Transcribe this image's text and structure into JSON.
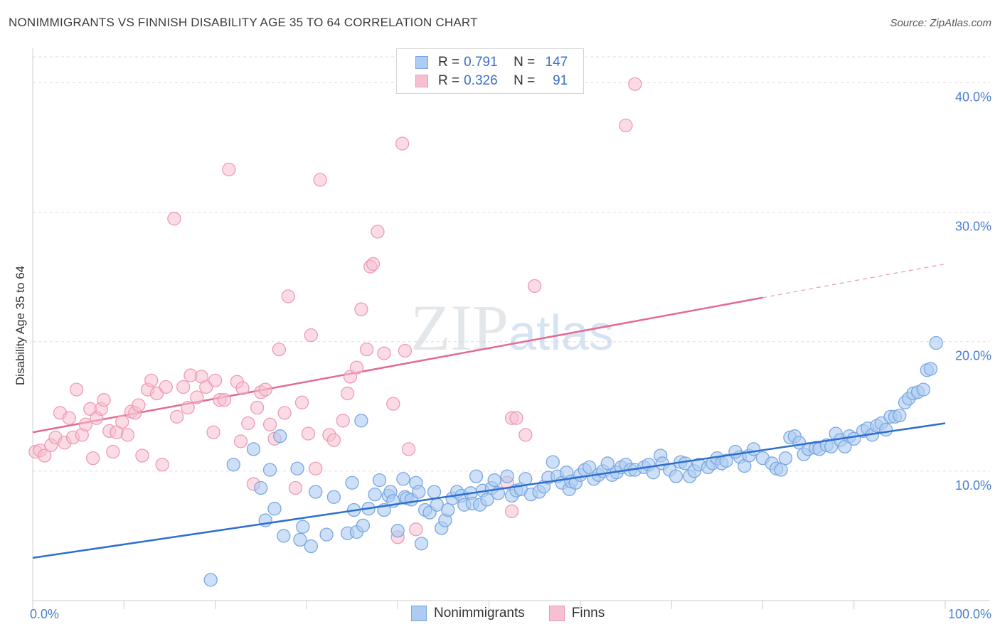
{
  "header": {
    "title": "NONIMMIGRANTS VS FINNISH DISABILITY AGE 35 TO 64 CORRELATION CHART",
    "source": "Source: ZipAtlas.com"
  },
  "legend": {
    "series1": {
      "r_label": "R =",
      "r_value": "0.791",
      "n_label": "N =",
      "n_value": "147"
    },
    "series2": {
      "r_label": "R =",
      "r_value": "0.326",
      "n_label": "N =",
      "n_value": "91"
    }
  },
  "bottom_legend": {
    "series1": "Nonimmigrants",
    "series2": "Finns"
  },
  "watermark": "ZIPatlas",
  "colors": {
    "blue_fill": "#aecbf2",
    "blue_stroke": "#7aa7e0",
    "blue_line": "#2d6fcf",
    "pink_fill": "#f7c0d0",
    "pink_stroke": "#ee9ab5",
    "pink_line": "#e26a93",
    "tick_text": "#4a7fd0"
  },
  "chart_data": {
    "type": "scatter",
    "title": "NONIMMIGRANTS VS FINNISH DISABILITY AGE 35 TO 64 CORRELATION CHART",
    "xlabel": "",
    "ylabel": "Disability Age 35 to 64",
    "xlim": [
      0,
      100
    ],
    "ylim": [
      0,
      42
    ],
    "x_tick_labels": [
      "0.0%",
      "100.0%"
    ],
    "y_ticks": [
      10,
      20,
      30,
      40
    ],
    "y_tick_labels": [
      "10.0%",
      "20.0%",
      "30.0%",
      "40.0%"
    ],
    "grid": "horizontal dashed",
    "legend_position": "top-center",
    "series": [
      {
        "name": "Nonimmigrants",
        "color": "#aecbf2",
        "trend": {
          "x": [
            0,
            100
          ],
          "y": [
            3.3,
            13.7
          ],
          "style": "solid"
        },
        "points": [
          [
            19.5,
            1.6
          ],
          [
            22,
            10.5
          ],
          [
            24.2,
            11.7
          ],
          [
            25,
            8.7
          ],
          [
            25.5,
            6.2
          ],
          [
            26,
            10.1
          ],
          [
            26.5,
            7.1
          ],
          [
            27.1,
            12.7
          ],
          [
            27.5,
            5
          ],
          [
            29,
            10.2
          ],
          [
            29.3,
            4.7
          ],
          [
            29.6,
            5.7
          ],
          [
            30.5,
            4.2
          ],
          [
            31,
            8.4
          ],
          [
            32.2,
            5.1
          ],
          [
            33,
            8
          ],
          [
            34.5,
            5.2
          ],
          [
            35,
            9.1
          ],
          [
            35.2,
            7
          ],
          [
            35.5,
            5.3
          ],
          [
            36,
            13.9
          ],
          [
            36.2,
            5.8
          ],
          [
            36.8,
            7.1
          ],
          [
            37.5,
            8.2
          ],
          [
            38,
            9.3
          ],
          [
            38.5,
            7
          ],
          [
            39,
            8.1
          ],
          [
            39.2,
            8.4
          ],
          [
            39.5,
            7.7
          ],
          [
            40,
            5.4
          ],
          [
            40.6,
            9.4
          ],
          [
            40.8,
            8
          ],
          [
            41,
            7.9
          ],
          [
            41.5,
            7.8
          ],
          [
            42,
            9.1
          ],
          [
            42.3,
            8.4
          ],
          [
            42.6,
            4.4
          ],
          [
            43,
            7
          ],
          [
            43.5,
            6.8
          ],
          [
            44,
            8.4
          ],
          [
            44.3,
            7.4
          ],
          [
            44.8,
            5.6
          ],
          [
            45.2,
            6.2
          ],
          [
            45.5,
            7
          ],
          [
            46,
            7.9
          ],
          [
            46.5,
            8.4
          ],
          [
            47,
            8.1
          ],
          [
            47.3,
            7.4
          ],
          [
            48,
            8.3
          ],
          [
            48.2,
            7.5
          ],
          [
            48.6,
            9.6
          ],
          [
            49,
            7.4
          ],
          [
            49.3,
            8.5
          ],
          [
            49.8,
            7.8
          ],
          [
            50.3,
            8.7
          ],
          [
            50.6,
            9.3
          ],
          [
            51,
            8.3
          ],
          [
            52,
            9.6
          ],
          [
            52.5,
            8.1
          ],
          [
            53,
            8.5
          ],
          [
            53.5,
            8.6
          ],
          [
            54,
            9.4
          ],
          [
            54.6,
            8.2
          ],
          [
            55.5,
            8.4
          ],
          [
            56,
            8.8
          ],
          [
            56.5,
            9.5
          ],
          [
            57,
            10.7
          ],
          [
            57.5,
            9.6
          ],
          [
            58,
            9.1
          ],
          [
            58.5,
            9.9
          ],
          [
            58.8,
            8.6
          ],
          [
            59,
            9.2
          ],
          [
            59.5,
            9.1
          ],
          [
            60,
            9.7
          ],
          [
            60.5,
            10.1
          ],
          [
            61,
            10.3
          ],
          [
            61.5,
            9.4
          ],
          [
            62,
            9.7
          ],
          [
            62.5,
            10
          ],
          [
            63,
            10.6
          ],
          [
            63.5,
            9.7
          ],
          [
            64,
            9.9
          ],
          [
            64.5,
            10.3
          ],
          [
            65,
            10.5
          ],
          [
            65.5,
            10.1
          ],
          [
            66,
            10.1
          ],
          [
            67,
            10.3
          ],
          [
            67.5,
            10.5
          ],
          [
            68,
            9.9
          ],
          [
            68.8,
            11.2
          ],
          [
            69,
            10.6
          ],
          [
            69.8,
            10.1
          ],
          [
            70.5,
            9.6
          ],
          [
            71,
            10.7
          ],
          [
            71.5,
            10.6
          ],
          [
            72,
            9.6
          ],
          [
            72.5,
            10
          ],
          [
            73,
            10.5
          ],
          [
            74,
            10.3
          ],
          [
            74.5,
            10.6
          ],
          [
            75,
            11
          ],
          [
            75.5,
            10.6
          ],
          [
            76,
            10.8
          ],
          [
            77.5,
            11.1
          ],
          [
            77,
            11.5
          ],
          [
            78,
            10.4
          ],
          [
            78.5,
            11.2
          ],
          [
            79,
            11.7
          ],
          [
            80,
            11
          ],
          [
            81,
            10.6
          ],
          [
            81.5,
            10.2
          ],
          [
            82,
            10.1
          ],
          [
            82.5,
            11
          ],
          [
            83,
            12.6
          ],
          [
            83.5,
            12.7
          ],
          [
            84,
            12.2
          ],
          [
            84.5,
            11.3
          ],
          [
            85,
            11.7
          ],
          [
            85.8,
            11.8
          ],
          [
            86.2,
            11.7
          ],
          [
            87,
            12
          ],
          [
            87.5,
            11.9
          ],
          [
            88,
            12.9
          ],
          [
            88.5,
            12.4
          ],
          [
            89,
            11.9
          ],
          [
            89.5,
            12.7
          ],
          [
            90,
            12.5
          ],
          [
            91,
            13.1
          ],
          [
            91.5,
            13.3
          ],
          [
            92,
            12.8
          ],
          [
            92.5,
            13.5
          ],
          [
            93,
            13.7
          ],
          [
            93.5,
            13.2
          ],
          [
            94,
            14.2
          ],
          [
            94.5,
            14.2
          ],
          [
            95,
            14.3
          ],
          [
            95.6,
            15.3
          ],
          [
            96,
            15.6
          ],
          [
            96.5,
            16
          ],
          [
            97,
            16.1
          ],
          [
            97.6,
            16.3
          ],
          [
            98,
            17.8
          ],
          [
            98.4,
            17.9
          ],
          [
            99,
            19.9
          ]
        ]
      },
      {
        "name": "Finns",
        "color": "#f7c0d0",
        "trend": {
          "x": [
            0,
            80
          ],
          "y": [
            13,
            23.4
          ],
          "style": "solid",
          "extension": {
            "x": [
              80,
              100
            ],
            "y": [
              23.4,
              26
            ]
          },
          "extension_style": "dashed"
        },
        "points": [
          [
            0.3,
            11.5
          ],
          [
            0.8,
            11.6
          ],
          [
            1.3,
            11.2
          ],
          [
            2,
            12
          ],
          [
            2.5,
            12.6
          ],
          [
            3,
            14.5
          ],
          [
            3.5,
            12.2
          ],
          [
            4,
            14.1
          ],
          [
            4.4,
            12.6
          ],
          [
            4.8,
            16.3
          ],
          [
            5.4,
            12.8
          ],
          [
            5.8,
            13.6
          ],
          [
            6.3,
            14.8
          ],
          [
            6.6,
            11
          ],
          [
            7,
            14.1
          ],
          [
            7.5,
            14.8
          ],
          [
            7.8,
            15.5
          ],
          [
            8.4,
            13.1
          ],
          [
            8.8,
            11.5
          ],
          [
            9.2,
            13
          ],
          [
            9.8,
            13.8
          ],
          [
            10.4,
            12.8
          ],
          [
            10.8,
            14.6
          ],
          [
            11.2,
            14.5
          ],
          [
            11.6,
            15.1
          ],
          [
            12,
            11.2
          ],
          [
            12.6,
            16.3
          ],
          [
            13,
            17
          ],
          [
            13.6,
            16
          ],
          [
            14.2,
            10.5
          ],
          [
            14.6,
            16.5
          ],
          [
            15.5,
            29.5
          ],
          [
            15.8,
            14.2
          ],
          [
            16.5,
            16.5
          ],
          [
            17,
            14.9
          ],
          [
            17.3,
            17.4
          ],
          [
            18,
            15.7
          ],
          [
            18.5,
            17.3
          ],
          [
            19,
            16.5
          ],
          [
            19.8,
            13
          ],
          [
            20,
            17
          ],
          [
            20.5,
            15.5
          ],
          [
            21,
            15.5
          ],
          [
            21.5,
            33.3
          ],
          [
            22.4,
            16.9
          ],
          [
            22.8,
            12.3
          ],
          [
            23,
            16.4
          ],
          [
            23.6,
            13.7
          ],
          [
            24.2,
            9
          ],
          [
            24.6,
            14.9
          ],
          [
            25,
            16.1
          ],
          [
            25.5,
            16.3
          ],
          [
            26,
            13.6
          ],
          [
            26.5,
            12.5
          ],
          [
            27,
            19.4
          ],
          [
            27.6,
            14.5
          ],
          [
            28,
            23.5
          ],
          [
            28.8,
            8.7
          ],
          [
            29.5,
            15.3
          ],
          [
            30.2,
            12.9
          ],
          [
            30.5,
            20.5
          ],
          [
            31,
            10.2
          ],
          [
            31.5,
            32.5
          ],
          [
            32.5,
            12.8
          ],
          [
            33,
            12.4
          ],
          [
            34.5,
            16
          ],
          [
            34,
            13.9
          ],
          [
            34.8,
            17.3
          ],
          [
            35.5,
            18
          ],
          [
            36,
            22.5
          ],
          [
            36.6,
            19.4
          ],
          [
            37,
            25.8
          ],
          [
            37.3,
            26
          ],
          [
            37.8,
            28.5
          ],
          [
            38.5,
            19.1
          ],
          [
            39.5,
            15.2
          ],
          [
            40,
            4.9
          ],
          [
            40.5,
            35.3
          ],
          [
            40.8,
            19.3
          ],
          [
            41.2,
            11.7
          ],
          [
            42,
            5.5
          ],
          [
            52.5,
            14.1
          ],
          [
            53,
            14.1
          ],
          [
            54,
            12.8
          ],
          [
            52,
            9.1
          ],
          [
            52.5,
            6.9
          ],
          [
            55,
            24.3
          ],
          [
            65,
            36.7
          ],
          [
            66,
            39.9
          ]
        ]
      }
    ]
  }
}
